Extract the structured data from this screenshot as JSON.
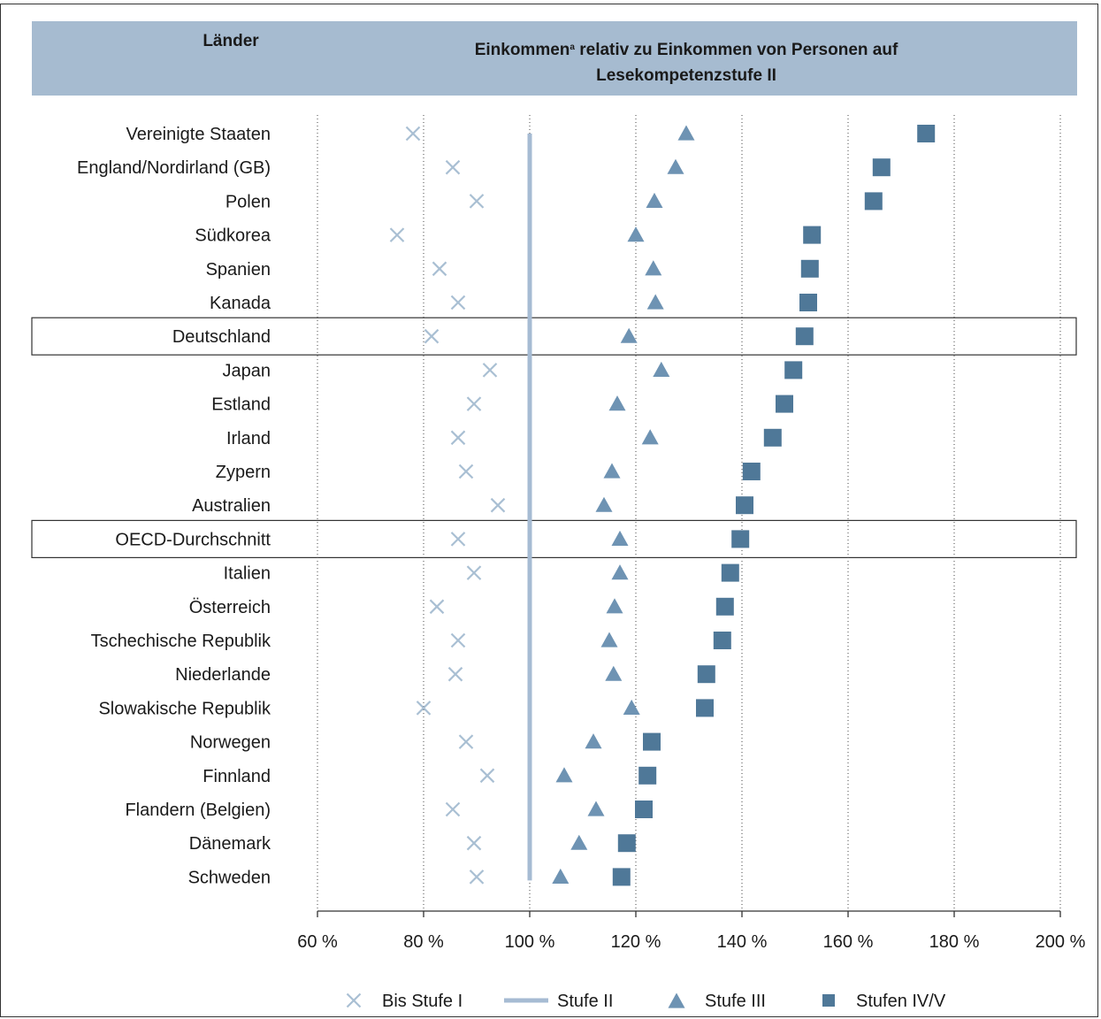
{
  "header": {
    "countries_label": "Länder",
    "title_main": "Einkommen",
    "title_superscript": "a",
    "title_rest_line1": " relativ zu Einkommen von Personen auf",
    "title_line2": "Lesekompetenzstufe II"
  },
  "colors": {
    "header_bg": "#a6bbd0",
    "stufe1": "#a9bfd3",
    "stufe2": "#a6bbd3",
    "stufe3": "#6e93b3",
    "stufe45": "#4f7898"
  },
  "chart_data": {
    "type": "scatter",
    "xlim": [
      60,
      200
    ],
    "xticks": [
      "60 %",
      "80 %",
      "100 %",
      "120 %",
      "140 %",
      "160 %",
      "180 %",
      "200 %"
    ],
    "xtick_values": [
      60,
      80,
      100,
      120,
      140,
      160,
      180,
      200
    ],
    "grid": "vertical-dotted",
    "reference_line": 100,
    "highlighted_rows": [
      "Deutschland",
      "OECD-Durchschnitt"
    ],
    "legend_position": "bottom",
    "legend": [
      {
        "name": "Bis Stufe I",
        "marker": "x"
      },
      {
        "name": "Stufe II",
        "marker": "line"
      },
      {
        "name": "Stufe III",
        "marker": "triangle"
      },
      {
        "name": "Stufen IV/V",
        "marker": "square"
      }
    ],
    "countries": [
      "Vereinigte Staaten",
      "England/Nordirland (GB)",
      "Polen",
      "Südkorea",
      "Spanien",
      "Kanada",
      "Deutschland",
      "Japan",
      "Estland",
      "Irland",
      "Zypern",
      "Australien",
      "OECD-Durchschnitt",
      "Italien",
      "Österreich",
      "Tschechische Republik",
      "Niederlande",
      "Slowakische Republik",
      "Norwegen",
      "Finnland",
      "Flandern (Belgien)",
      "Dänemark",
      "Schweden"
    ],
    "series": [
      {
        "name": "Bis Stufe I",
        "values": [
          78,
          85.5,
          90,
          75,
          83,
          86.5,
          81.5,
          92.5,
          89.5,
          86.5,
          88,
          94,
          86.5,
          89.5,
          82.5,
          86.5,
          86,
          80,
          88,
          92,
          85.5,
          89.5,
          90
        ]
      },
      {
        "name": "Stufe III",
        "values": [
          129.5,
          127.5,
          123.5,
          120,
          123.3,
          123.7,
          118.7,
          124.8,
          116.5,
          122.7,
          115.5,
          114,
          117,
          117,
          116,
          115,
          115.8,
          119.2,
          112,
          106.5,
          112.5,
          109.3,
          105.8
        ]
      },
      {
        "name": "Stufen IV/V",
        "values": [
          174.7,
          166.3,
          164.8,
          153.2,
          152.8,
          152.5,
          151.8,
          149.7,
          148,
          145.8,
          141.8,
          140.5,
          139.7,
          137.8,
          136.8,
          136.3,
          133.3,
          133,
          123,
          122.2,
          121.5,
          118.3,
          117.3
        ]
      }
    ]
  }
}
